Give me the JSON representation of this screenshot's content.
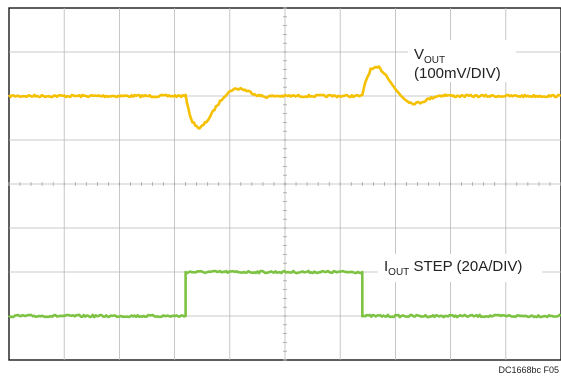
{
  "chart_data": {
    "type": "line",
    "title": "",
    "xlabel": "",
    "ylabel": "",
    "grid": true,
    "divisions": {
      "x": 10,
      "y": 8
    },
    "xlim": [
      0,
      10
    ],
    "ylim": [
      -4,
      4
    ],
    "series": [
      {
        "label_main": "V",
        "label_sub": "OUT",
        "label_line2": "(100mV/DIV)",
        "color": "#f5c000",
        "x": [
          0,
          3.2,
          3.3,
          3.45,
          3.6,
          3.75,
          3.9,
          4.05,
          4.2,
          4.35,
          4.5,
          4.65,
          4.8,
          5.0,
          6.4,
          6.45,
          6.55,
          6.7,
          6.85,
          7.0,
          7.15,
          7.3,
          7.45,
          7.6,
          7.75,
          7.9,
          8.05,
          8.2,
          10
        ],
        "y": [
          2.0,
          2.0,
          1.45,
          1.25,
          1.45,
          1.75,
          2.0,
          2.15,
          2.17,
          2.1,
          2.02,
          1.98,
          2.0,
          2.0,
          2.0,
          2.3,
          2.6,
          2.65,
          2.45,
          2.15,
          1.95,
          1.83,
          1.85,
          1.93,
          2.0,
          2.02,
          2.0,
          2.0,
          2.0
        ]
      },
      {
        "label_main": "I",
        "label_sub": "OUT",
        "label_rest": " STEP (20A/DIV)",
        "color": "#7dc242",
        "x": [
          0,
          3.2,
          3.2,
          6.4,
          6.4,
          10
        ],
        "y": [
          -3.0,
          -3.0,
          -2.0,
          -2.0,
          -3.0,
          -3.0
        ]
      }
    ]
  },
  "footnote": "DC1668bc F05"
}
